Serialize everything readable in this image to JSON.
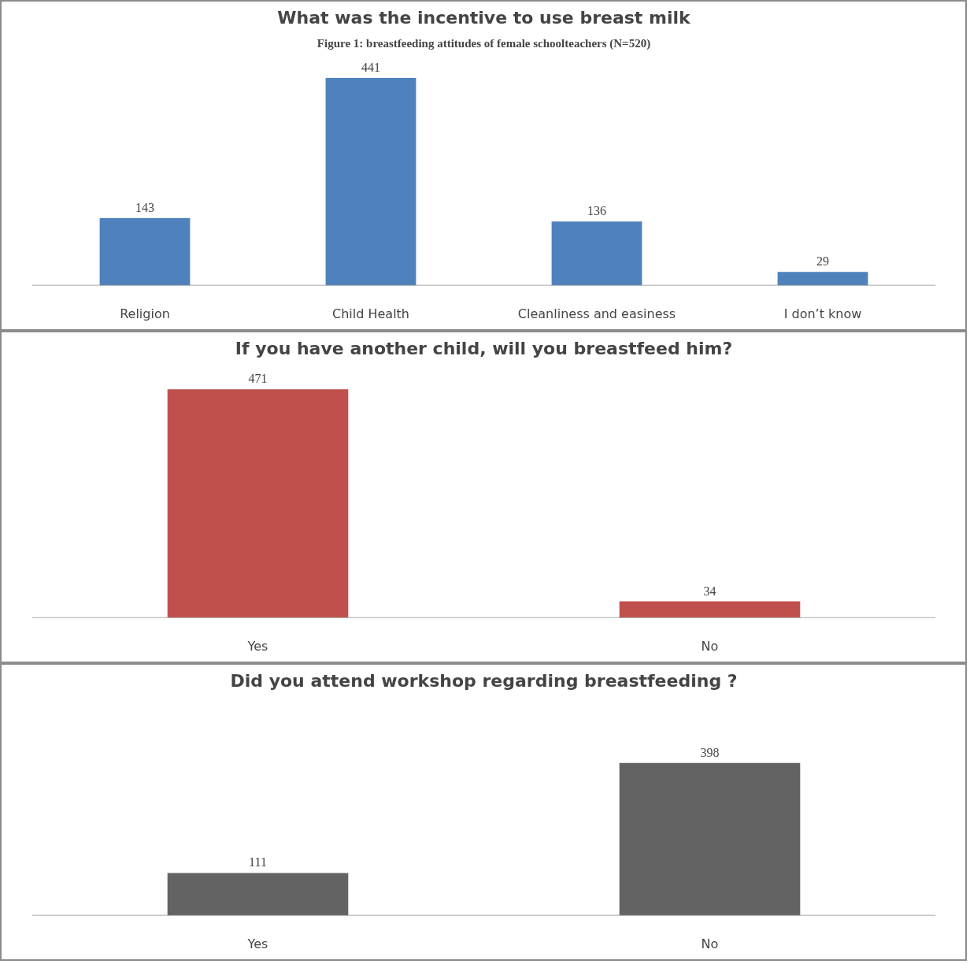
{
  "chart_data": [
    {
      "type": "bar",
      "title": "What was the incentive to use breast milk",
      "annotations": [
        "Figure 1: breastfeeding attitudes of female schoolteachers (N=520)"
      ],
      "categories": [
        "Religion",
        "Child Health",
        "Cleanliness and easiness",
        "I don’t know"
      ],
      "values": [
        143,
        441,
        136,
        29
      ],
      "color": "#4f81bd",
      "data_labels": true
    },
    {
      "type": "bar",
      "title": "If you have another child, will you breastfeed him?",
      "categories": [
        "Yes",
        "No"
      ],
      "values": [
        471,
        34
      ],
      "color": "#c0504d",
      "data_labels": true
    },
    {
      "type": "bar",
      "title": "Did you attend workshop regarding breastfeeding ?",
      "categories": [
        "Yes",
        "No"
      ],
      "values": [
        111,
        398
      ],
      "color": "#636363",
      "data_labels": true
    }
  ]
}
